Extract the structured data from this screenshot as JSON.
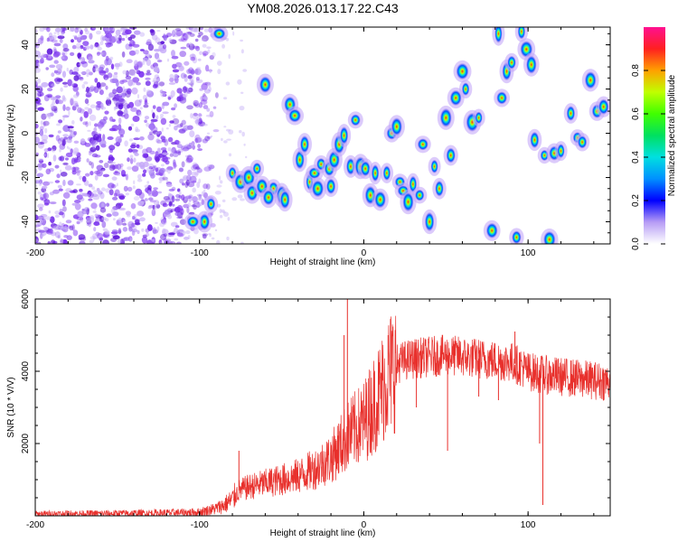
{
  "title": "YM08.2026.013.17.22.C43",
  "chart_data": [
    {
      "type": "heatmap",
      "xlabel": "Height of straight line (km)",
      "ylabel": "Frequency (Hz)",
      "xlim": [
        -200,
        150
      ],
      "ylim": [
        -50,
        48
      ],
      "xticks": [
        -200,
        -100,
        0,
        100
      ],
      "yticks": [
        -40,
        -20,
        0,
        20,
        40
      ],
      "colorbar": {
        "label": "Normalized spectral amplitude",
        "range": [
          0,
          1
        ],
        "ticks": [
          "0.0",
          "0.2",
          "0.4",
          "0.6",
          "0.8"
        ],
        "tick_values": [
          0,
          0.2,
          0.4,
          0.6,
          0.8
        ]
      },
      "noise_region_x": [
        -200,
        -85
      ],
      "noise_color": "#7b2ff0",
      "echoes": [
        [
          -88,
          45
        ],
        [
          -93,
          -32
        ],
        [
          -97,
          -40
        ],
        [
          -104,
          -40
        ],
        [
          -60,
          22
        ],
        [
          -45,
          13
        ],
        [
          -42,
          8
        ],
        [
          -39,
          -12
        ],
        [
          -36,
          -5
        ],
        [
          -33,
          -22
        ],
        [
          -30,
          -18
        ],
        [
          -28,
          -25
        ],
        [
          -26,
          -14
        ],
        [
          -21,
          -16
        ],
        [
          -20,
          -24
        ],
        [
          -18,
          -12
        ],
        [
          -15,
          -5
        ],
        [
          -12,
          -1
        ],
        [
          -8,
          -15
        ],
        [
          -5,
          6
        ],
        [
          -2,
          -15
        ],
        [
          1,
          -16
        ],
        [
          4,
          -28
        ],
        [
          7,
          -18
        ],
        [
          10,
          -30
        ],
        [
          14,
          -18
        ],
        [
          17,
          0
        ],
        [
          20,
          3
        ],
        [
          22,
          -22
        ],
        [
          24,
          -26
        ],
        [
          27,
          -31
        ],
        [
          30,
          -23
        ],
        [
          34,
          -28
        ],
        [
          36,
          -5
        ],
        [
          40,
          -40
        ],
        [
          43,
          -15
        ],
        [
          46,
          -25
        ],
        [
          50,
          7
        ],
        [
          53,
          -10
        ],
        [
          56,
          16
        ],
        [
          60,
          28
        ],
        [
          62,
          20
        ],
        [
          66,
          5
        ],
        [
          70,
          7
        ],
        [
          78,
          -44
        ],
        [
          82,
          45
        ],
        [
          84,
          16
        ],
        [
          87,
          28
        ],
        [
          90,
          32
        ],
        [
          93,
          -47
        ],
        [
          96,
          46
        ],
        [
          99,
          38
        ],
        [
          102,
          31
        ],
        [
          104,
          -3
        ],
        [
          110,
          -10
        ],
        [
          113,
          -48
        ],
        [
          116,
          -9
        ],
        [
          120,
          -8
        ],
        [
          126,
          9
        ],
        [
          130,
          -2
        ],
        [
          133,
          -4
        ],
        [
          138,
          24
        ],
        [
          142,
          10
        ],
        [
          146,
          12
        ],
        [
          -80,
          -18
        ],
        [
          -75,
          -22
        ],
        [
          -70,
          -20
        ],
        [
          -65,
          -16
        ],
        [
          -55,
          -25
        ],
        [
          -50,
          -28
        ],
        [
          -48,
          -30
        ],
        [
          -68,
          -27
        ],
        [
          -62,
          -24
        ],
        [
          -58,
          -29
        ]
      ]
    },
    {
      "type": "line",
      "xlabel": "Height of straight line (km)",
      "ylabel": "SNR (10 * V/V)",
      "xlim": [
        -200,
        150
      ],
      "ylim": [
        0,
        6000
      ],
      "xticks": [
        -200,
        -100,
        0,
        100
      ],
      "yticks": [
        2000,
        4000,
        6000
      ],
      "series": [
        {
          "color": "#e8302c",
          "x": [
            -200,
            -180,
            -160,
            -140,
            -120,
            -100,
            -90,
            -85,
            -80,
            -76,
            -70,
            -60,
            -50,
            -40,
            -30,
            -20,
            -15,
            -10,
            -5,
            0,
            5,
            10,
            15,
            20,
            25,
            30,
            40,
            50,
            60,
            70,
            80,
            90,
            95,
            100,
            110,
            120,
            130,
            140,
            150
          ],
          "y": [
            50,
            60,
            60,
            70,
            80,
            100,
            200,
            300,
            450,
            700,
            800,
            900,
            1000,
            1100,
            1300,
            1600,
            1900,
            2200,
            2400,
            2600,
            3000,
            3400,
            3900,
            4200,
            4300,
            4350,
            4400,
            4450,
            4400,
            4350,
            4300,
            4250,
            4150,
            4000,
            3900,
            3850,
            3800,
            3750,
            3700
          ]
        }
      ],
      "spikes": [
        {
          "x": -10,
          "y": 6000
        },
        {
          "x": -12,
          "y": 5000
        },
        {
          "x": 92,
          "y": 5100
        },
        {
          "x": 51,
          "y": 1800
        },
        {
          "x": 32,
          "y": 3000
        },
        {
          "x": 107,
          "y": 2000
        },
        {
          "x": 109,
          "y": 300
        },
        {
          "x": 70,
          "y": 3300
        },
        {
          "x": 82,
          "y": 3200
        },
        {
          "x": -76,
          "y": 1800
        }
      ]
    }
  ]
}
